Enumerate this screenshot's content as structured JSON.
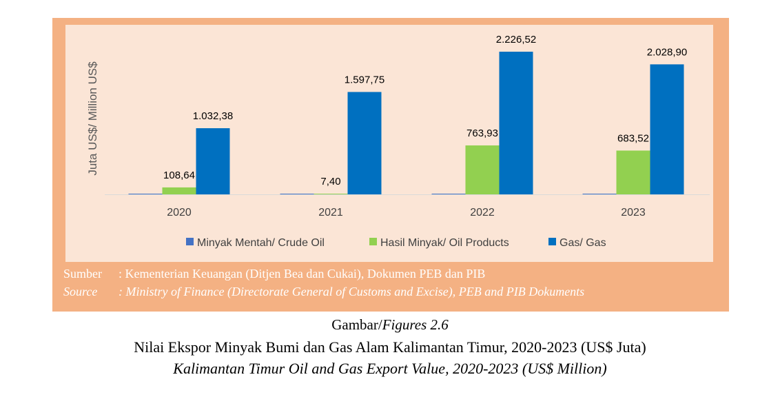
{
  "chart_data": {
    "type": "bar",
    "categories": [
      "2020",
      "2021",
      "2022",
      "2023"
    ],
    "series": [
      {
        "name": "Minyak Mentah/ Crude Oil",
        "values": [
          0,
          0,
          0,
          0
        ],
        "labels": [
          "",
          "",
          "",
          ""
        ],
        "color": "#4472c4"
      },
      {
        "name": "Hasil Minyak/ Oil Products",
        "values": [
          108.64,
          7.4,
          763.93,
          683.52
        ],
        "labels": [
          "108,64",
          "7,40",
          "763,93",
          "683,52"
        ],
        "color": "#92d050"
      },
      {
        "name": "Gas/ Gas",
        "values": [
          1032.38,
          1597.75,
          2226.52,
          2028.9
        ],
        "labels": [
          "1.032,38",
          "1.597,75",
          "2.226,52",
          "2.028,90"
        ],
        "color": "#0070c0"
      }
    ],
    "ylabel": "Juta US$/ Million US$",
    "ylim": [
      0,
      2400
    ],
    "grid": false,
    "legend": "bottom"
  },
  "source": {
    "line1_label": "Sumber",
    "line1_text": ": Kementerian Keuangan (Ditjen Bea dan Cukai), Dokumen PEB dan PIB",
    "line2_label": "Source",
    "line2_text": ": Ministry of Finance (Directorate General of Customs and Excise), PEB and PIB Dokuments"
  },
  "caption": {
    "figure_label": "Gambar/",
    "figure_label_en": "Figures 2.6",
    "title_id": "Nilai Ekspor Minyak Bumi dan Gas Alam Kalimantan Timur, 2020-2023 (US$ Juta)",
    "title_en": "Kalimantan Timur Oil and Gas Export Value, 2020-2023 (US$ Million)"
  },
  "watermark": "https://kaltim.bps.go.id"
}
